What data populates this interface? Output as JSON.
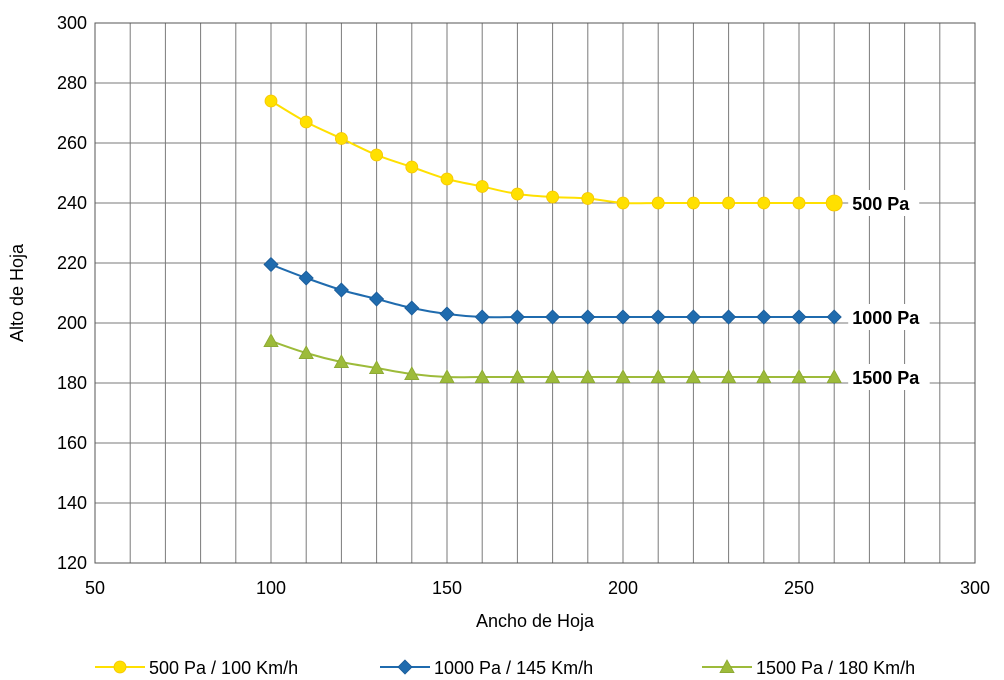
{
  "chart_data": {
    "type": "line",
    "title": "",
    "xlabel": "Ancho de Hoja",
    "ylabel": "Alto de Hoja",
    "xlim": [
      50,
      300
    ],
    "ylim": [
      120,
      300
    ],
    "xticks": [
      50,
      100,
      150,
      200,
      250,
      300
    ],
    "yticks": [
      120,
      140,
      160,
      180,
      200,
      220,
      240,
      260,
      280,
      300
    ],
    "grid": true,
    "legend_position": "bottom",
    "x": [
      100,
      110,
      120,
      130,
      140,
      150,
      160,
      170,
      180,
      190,
      200,
      210,
      220,
      230,
      240,
      250,
      260
    ],
    "series": [
      {
        "name": "500 Pa / 100 Km/h",
        "end_label": "500 Pa",
        "marker": "circle",
        "color": "#FFE000",
        "values": [
          274,
          267,
          261.5,
          256,
          252,
          248,
          245.5,
          243,
          242,
          241.5,
          240,
          240,
          240,
          240,
          240,
          240,
          240
        ]
      },
      {
        "name": "1000 Pa / 145 Km/h",
        "end_label": "1000 Pa",
        "marker": "diamond",
        "color": "#1F6BAE",
        "values": [
          219.5,
          215,
          211,
          208,
          205,
          203,
          202,
          202,
          202,
          202,
          202,
          202,
          202,
          202,
          202,
          202,
          202
        ]
      },
      {
        "name": "1500 Pa / 180 Km/h",
        "end_label": "1500 Pa",
        "marker": "triangle",
        "color": "#9DBB3A",
        "values": [
          194,
          190,
          187,
          185,
          183,
          182,
          182,
          182,
          182,
          182,
          182,
          182,
          182,
          182,
          182,
          182,
          182
        ]
      }
    ]
  }
}
